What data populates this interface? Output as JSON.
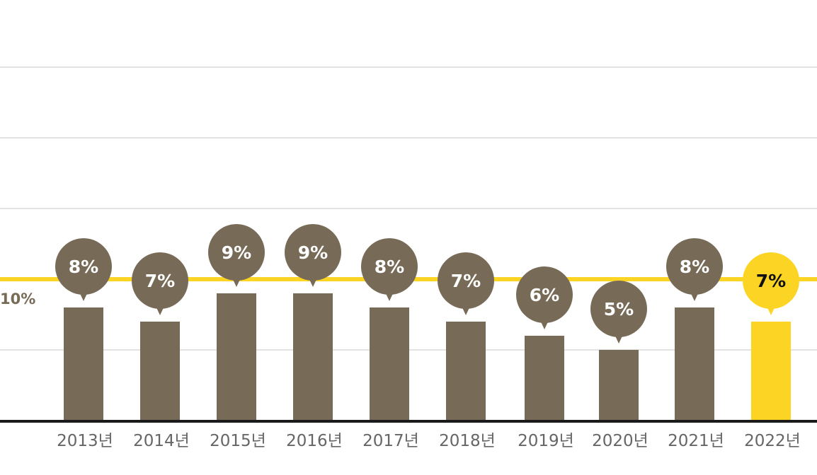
{
  "chart_data": {
    "type": "bar",
    "categories": [
      "2013년",
      "2014년",
      "2015년",
      "2016년",
      "2017년",
      "2018년",
      "2019년",
      "2020년",
      "2021년",
      "2022년"
    ],
    "values": [
      8,
      7,
      9,
      9,
      8,
      7,
      6,
      5,
      8,
      7
    ],
    "data_labels": [
      "8%",
      "7%",
      "9%",
      "9%",
      "8%",
      "7%",
      "6%",
      "5%",
      "8%",
      "7%"
    ],
    "highlight_index": 9,
    "reference_line": {
      "label": "10%"
    },
    "grid": true,
    "colors": {
      "bar": "#776b57",
      "highlight": "#fcd424",
      "reference_line": "#fcd424",
      "reference_label": "#776b57",
      "bubble_text": "#ffffff",
      "highlight_text": "#111111",
      "tick_label": "#666666",
      "grid": "#e2e2e2",
      "baseline": "#1a1a1a"
    }
  }
}
